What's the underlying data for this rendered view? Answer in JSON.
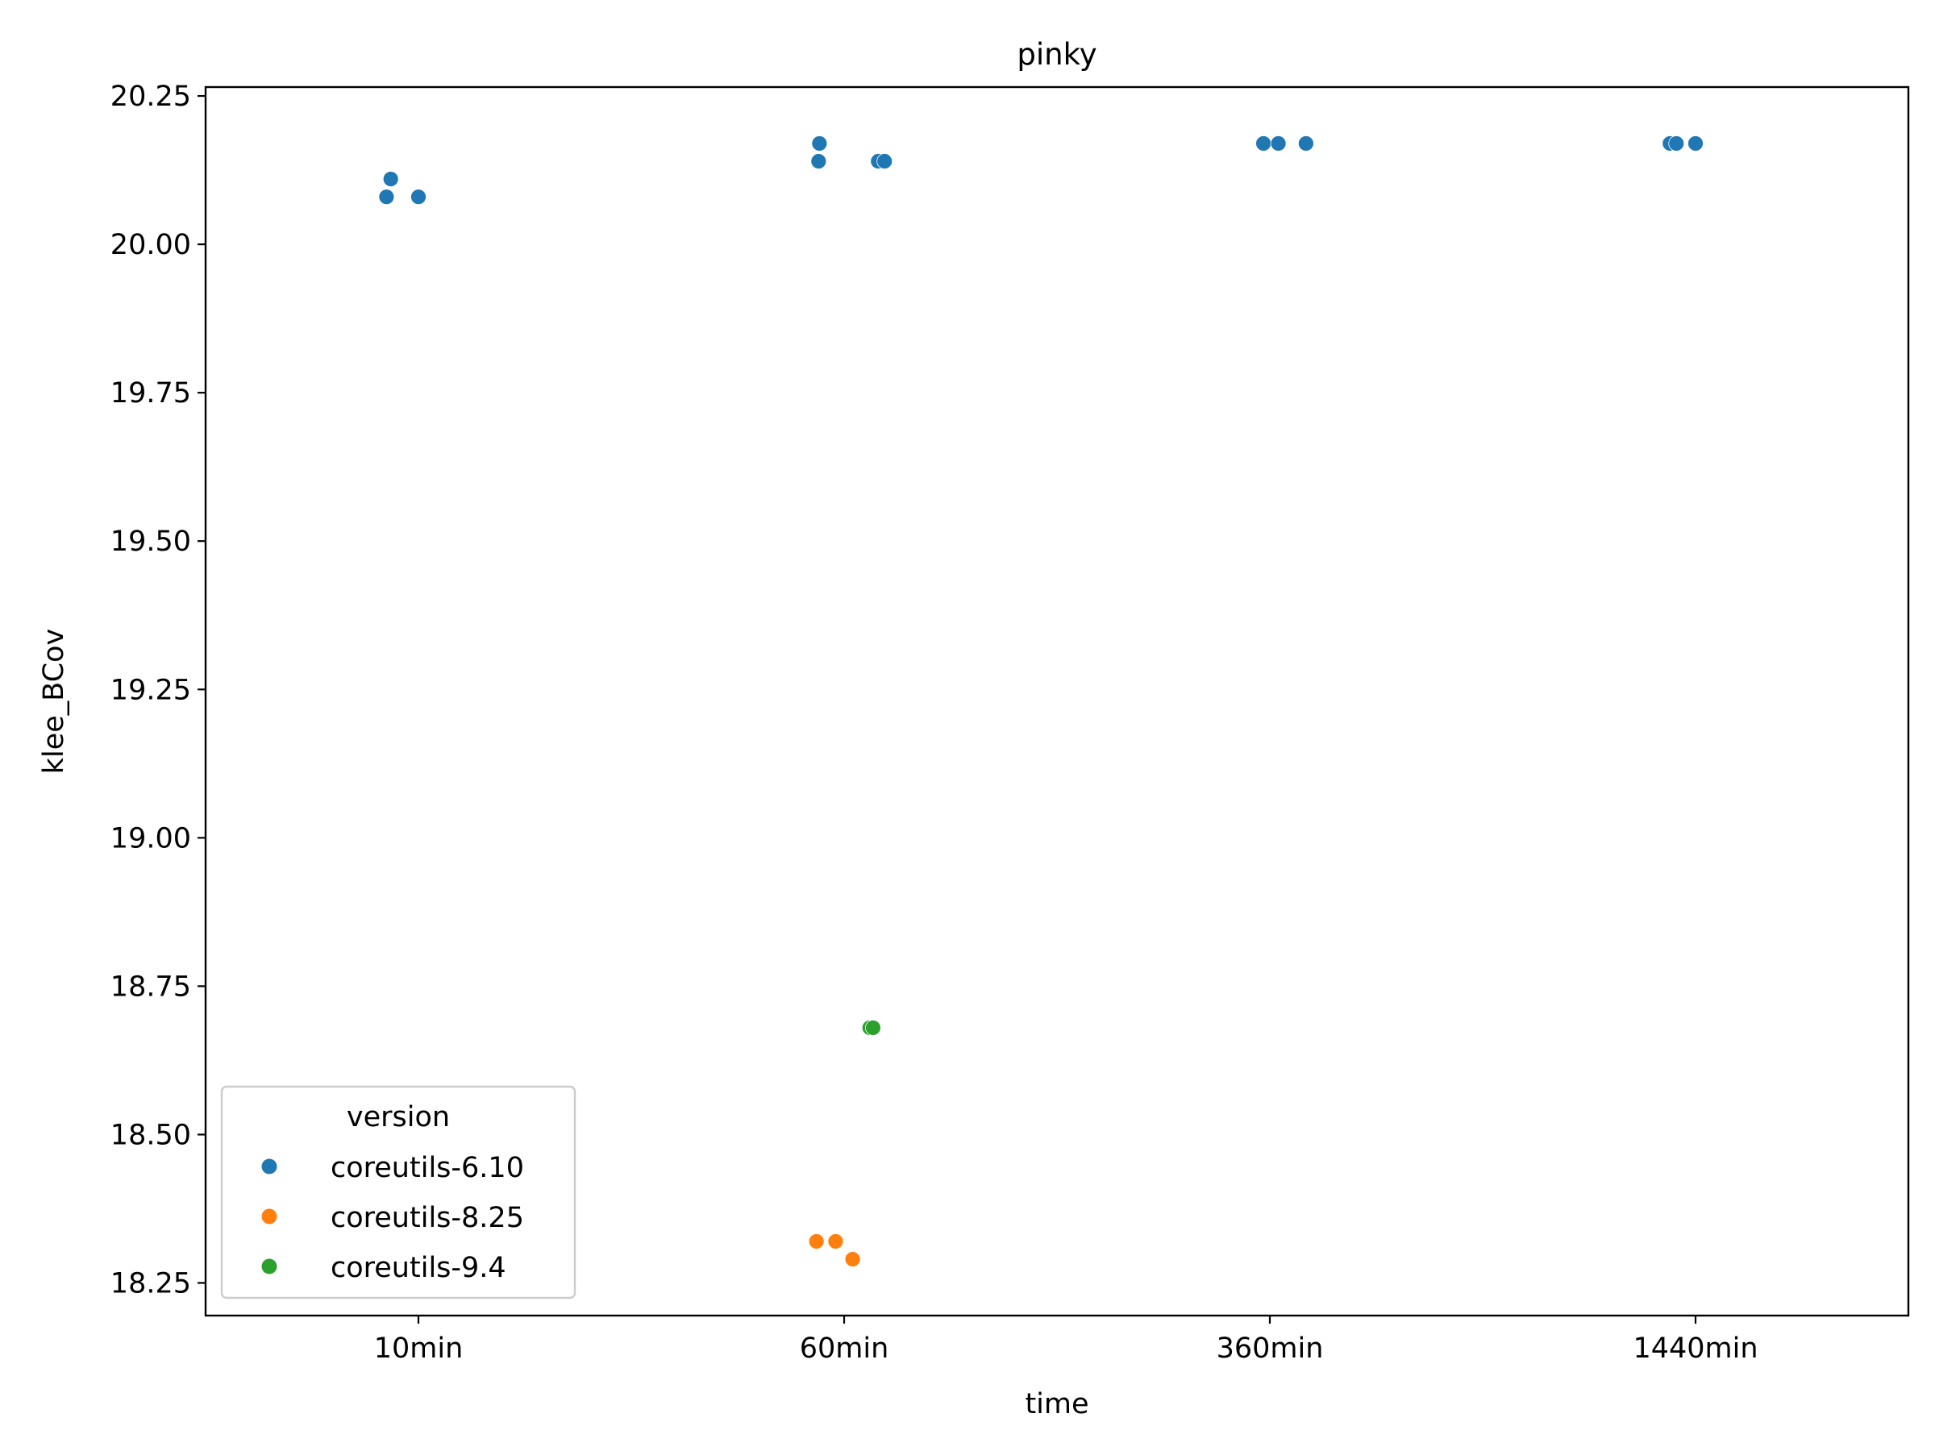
{
  "chart_data": {
    "type": "scatter",
    "title": "pinky",
    "xlabel": "time",
    "ylabel": "klee_BCov",
    "categories": [
      "10min",
      "60min",
      "360min",
      "1440min"
    ],
    "ylim": [
      18.195,
      20.265
    ],
    "yticks": [
      "18.25",
      "18.50",
      "18.75",
      "19.00",
      "19.25",
      "19.50",
      "19.75",
      "20.00",
      "20.25"
    ],
    "grid": false,
    "legend": {
      "title": "version",
      "placement": "lower-left"
    },
    "series": [
      {
        "name": "coreutils-6.10",
        "color": "#1f77b4",
        "points": [
          {
            "x": "10min",
            "jitter": -0.075,
            "y": 20.08
          },
          {
            "x": "10min",
            "jitter": -0.065,
            "y": 20.11
          },
          {
            "x": "10min",
            "jitter": 0.0,
            "y": 20.08
          },
          {
            "x": "60min",
            "jitter": -0.06,
            "y": 20.14
          },
          {
            "x": "60min",
            "jitter": -0.058,
            "y": 20.17
          },
          {
            "x": "60min",
            "jitter": 0.08,
            "y": 20.14
          },
          {
            "x": "60min",
            "jitter": 0.095,
            "y": 20.14
          },
          {
            "x": "360min",
            "jitter": -0.015,
            "y": 20.17
          },
          {
            "x": "360min",
            "jitter": 0.02,
            "y": 20.17
          },
          {
            "x": "360min",
            "jitter": 0.085,
            "y": 20.17
          },
          {
            "x": "1440min",
            "jitter": -0.06,
            "y": 20.17
          },
          {
            "x": "1440min",
            "jitter": -0.045,
            "y": 20.17
          },
          {
            "x": "1440min",
            "jitter": 0.0,
            "y": 20.17
          }
        ]
      },
      {
        "name": "coreutils-8.25",
        "color": "#ff7f0e",
        "points": [
          {
            "x": "60min",
            "jitter": -0.065,
            "y": 18.32
          },
          {
            "x": "60min",
            "jitter": -0.02,
            "y": 18.32
          },
          {
            "x": "60min",
            "jitter": 0.02,
            "y": 18.29
          }
        ]
      },
      {
        "name": "coreutils-9.4",
        "color": "#2ca02c",
        "points": [
          {
            "x": "60min",
            "jitter": 0.06,
            "y": 18.68
          },
          {
            "x": "60min",
            "jitter": 0.068,
            "y": 18.68
          }
        ]
      }
    ]
  }
}
